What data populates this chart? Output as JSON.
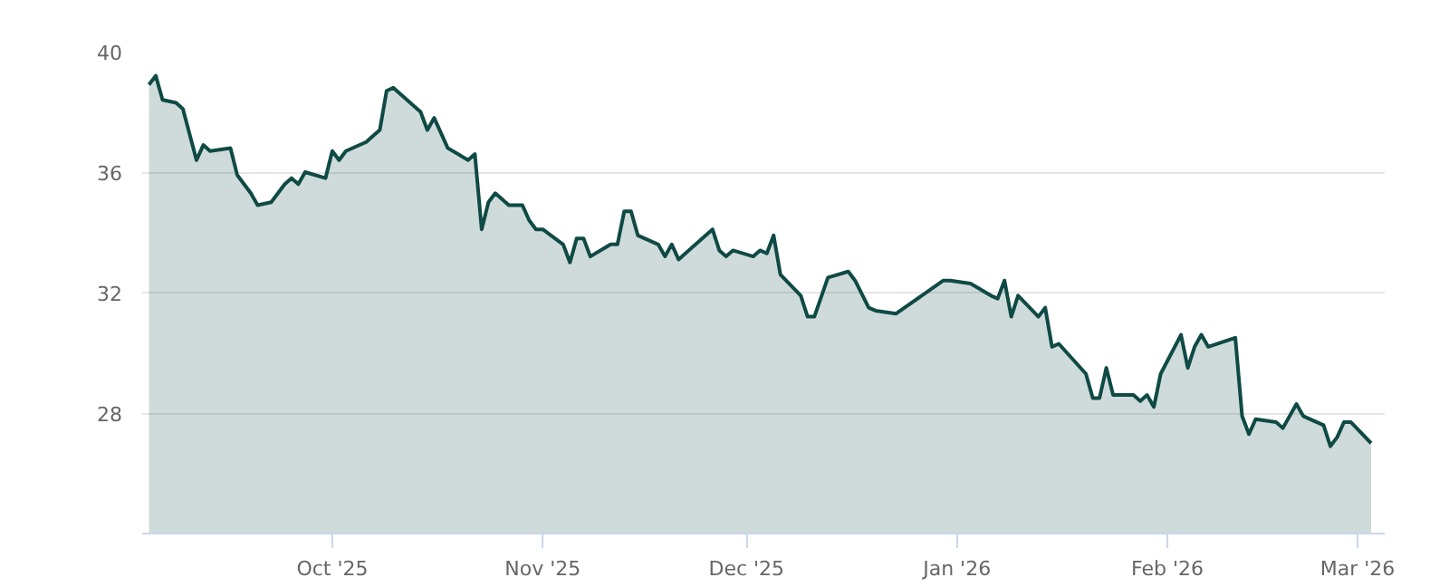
{
  "chart_data": {
    "type": "area",
    "x": [
      "2025-09-04",
      "2025-09-05",
      "2025-09-06",
      "2025-09-08",
      "2025-09-09",
      "2025-09-11",
      "2025-09-12",
      "2025-09-13",
      "2025-09-16",
      "2025-09-17",
      "2025-09-18",
      "2025-09-19",
      "2025-09-20",
      "2025-09-22",
      "2025-09-24",
      "2025-09-25",
      "2025-09-26",
      "2025-09-27",
      "2025-09-30",
      "2025-10-01",
      "2025-10-02",
      "2025-10-03",
      "2025-10-06",
      "2025-10-07",
      "2025-10-08",
      "2025-10-09",
      "2025-10-10",
      "2025-10-14",
      "2025-10-15",
      "2025-10-16",
      "2025-10-18",
      "2025-10-21",
      "2025-10-22",
      "2025-10-23",
      "2025-10-24",
      "2025-10-25",
      "2025-10-27",
      "2025-10-29",
      "2025-10-30",
      "2025-10-31",
      "2025-11-01",
      "2025-11-04",
      "2025-11-05",
      "2025-11-06",
      "2025-11-07",
      "2025-11-08",
      "2025-11-11",
      "2025-11-12",
      "2025-11-13",
      "2025-11-14",
      "2025-11-15",
      "2025-11-18",
      "2025-11-19",
      "2025-11-20",
      "2025-11-21",
      "2025-11-26",
      "2025-11-27",
      "2025-11-28",
      "2025-11-29",
      "2025-12-02",
      "2025-12-03",
      "2025-12-04",
      "2025-12-05",
      "2025-12-06",
      "2025-12-09",
      "2025-12-10",
      "2025-12-11",
      "2025-12-13",
      "2025-12-16",
      "2025-12-17",
      "2025-12-19",
      "2025-12-20",
      "2025-12-23",
      "2025-12-30",
      "2025-12-31",
      "2026-01-03",
      "2026-01-06",
      "2026-01-07",
      "2026-01-08",
      "2026-01-09",
      "2026-01-10",
      "2026-01-13",
      "2026-01-14",
      "2026-01-15",
      "2026-01-16",
      "2026-01-20",
      "2026-01-21",
      "2026-01-22",
      "2026-01-23",
      "2026-01-24",
      "2026-01-27",
      "2026-01-28",
      "2026-01-29",
      "2026-01-30",
      "2026-01-31",
      "2026-02-03",
      "2026-02-04",
      "2026-02-05",
      "2026-02-06",
      "2026-02-07",
      "2026-02-11",
      "2026-02-12",
      "2026-02-13",
      "2026-02-14",
      "2026-02-17",
      "2026-02-18",
      "2026-02-20",
      "2026-02-21",
      "2026-02-24",
      "2026-02-25",
      "2026-02-26",
      "2026-02-27",
      "2026-02-28",
      "2026-03-03"
    ],
    "series": [
      {
        "color": "#0f4a45",
        "values": [
          38.9,
          39.2,
          38.4,
          38.3,
          38.1,
          36.4,
          36.9,
          36.7,
          36.8,
          35.9,
          35.6,
          35.3,
          34.9,
          35.0,
          35.6,
          35.8,
          35.6,
          36.0,
          35.8,
          36.7,
          36.4,
          36.7,
          37.0,
          37.2,
          37.4,
          38.7,
          38.8,
          38.0,
          37.4,
          37.8,
          36.8,
          36.4,
          36.6,
          34.1,
          35.0,
          35.3,
          34.9,
          34.9,
          34.4,
          34.1,
          34.1,
          33.6,
          33.0,
          33.8,
          33.8,
          33.2,
          33.6,
          33.6,
          34.7,
          34.7,
          33.9,
          33.6,
          33.2,
          33.6,
          33.1,
          34.1,
          33.4,
          33.2,
          33.4,
          33.2,
          33.4,
          33.3,
          33.9,
          32.6,
          31.9,
          31.2,
          31.2,
          32.5,
          32.7,
          32.4,
          31.5,
          31.4,
          31.3,
          32.4,
          32.4,
          32.3,
          31.9,
          31.8,
          32.4,
          31.2,
          31.9,
          31.2,
          31.5,
          30.2,
          30.3,
          29.3,
          28.5,
          28.5,
          29.5,
          28.6,
          28.6,
          28.4,
          28.6,
          28.2,
          29.3,
          30.6,
          29.5,
          30.2,
          30.6,
          30.2,
          30.5,
          27.9,
          27.3,
          27.8,
          27.7,
          27.5,
          28.3,
          27.9,
          27.6,
          26.9,
          27.2,
          27.7,
          27.7,
          27.0
        ]
      }
    ],
    "xlim": [
      "2025-09-03",
      "2026-03-05"
    ],
    "xticks": [
      {
        "value": "2025-10-01",
        "label": "Oct '25"
      },
      {
        "value": "2025-11-01",
        "label": "Nov '25"
      },
      {
        "value": "2025-12-01",
        "label": "Dec '25"
      },
      {
        "value": "2026-01-01",
        "label": "Jan '26"
      },
      {
        "value": "2026-02-01",
        "label": "Feb '26"
      },
      {
        "value": "2026-03-01",
        "label": "Mar '26"
      }
    ],
    "ylim": [
      24,
      40
    ],
    "yticks": [
      28,
      32,
      36,
      40
    ],
    "grid": "y"
  }
}
